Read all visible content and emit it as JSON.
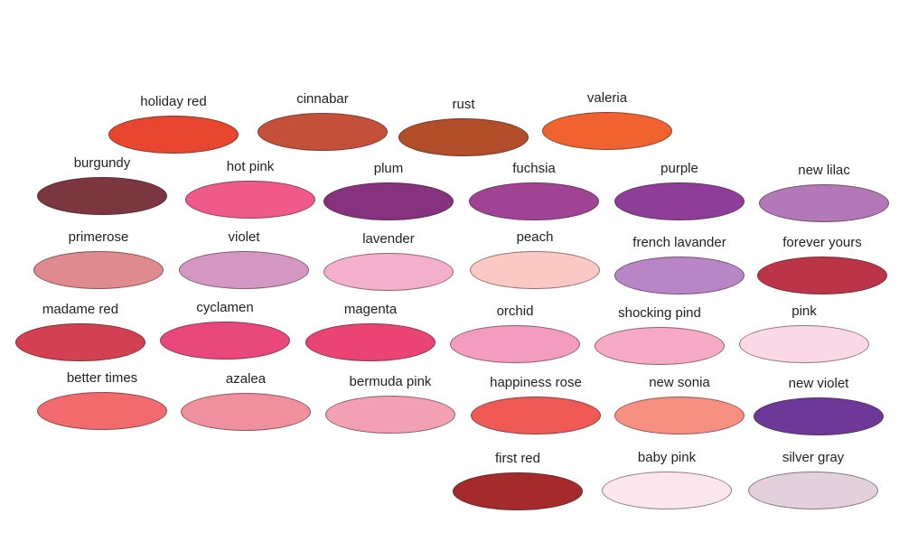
{
  "swatches": [
    {
      "label": "holiday red",
      "color": "#e8462f"
    },
    {
      "label": "cinnabar",
      "color": "#c4503a"
    },
    {
      "label": "rust",
      "color": "#b24d2a"
    },
    {
      "label": "valeria",
      "color": "#f06230"
    },
    {
      "label": "burgundy",
      "color": "#7c3640"
    },
    {
      "label": "hot pink",
      "color": "#f05a8a"
    },
    {
      "label": "plum",
      "color": "#86327e"
    },
    {
      "label": "fuchsia",
      "color": "#a14395"
    },
    {
      "label": "purple",
      "color": "#8e3e98"
    },
    {
      "label": "new lilac",
      "color": "#b278b8"
    },
    {
      "label": "primerose",
      "color": "#de8a8e"
    },
    {
      "label": "violet",
      "color": "#d497c4"
    },
    {
      "label": "lavender",
      "color": "#f4afcc"
    },
    {
      "label": "peach",
      "color": "#fcc8c4"
    },
    {
      "label": "french lavander",
      "color": "#b886c6"
    },
    {
      "label": "forever yours",
      "color": "#bc3448"
    },
    {
      "label": "madame red",
      "color": "#d24052"
    },
    {
      "label": "cyclamen",
      "color": "#e8487c"
    },
    {
      "label": "magenta",
      "color": "#ea4474"
    },
    {
      "label": "orchid",
      "color": "#f49cc0"
    },
    {
      "label": "shocking pind",
      "color": "#f6aac6"
    },
    {
      "label": "pink",
      "color": "#fbd8e6"
    },
    {
      "label": "better times",
      "color": "#f06a6e"
    },
    {
      "label": "azalea",
      "color": "#f0909e"
    },
    {
      "label": "bermuda pink",
      "color": "#f3a0b4"
    },
    {
      "label": "happiness rose",
      "color": "#ef5a56"
    },
    {
      "label": "new sonia",
      "color": "#f69080"
    },
    {
      "label": "new violet",
      "color": "#6e3898"
    },
    {
      "label": "first red",
      "color": "#a42a2c"
    },
    {
      "label": "baby pink",
      "color": "#fbe6ee"
    },
    {
      "label": "silver gray",
      "color": "#e2d0dc"
    }
  ]
}
